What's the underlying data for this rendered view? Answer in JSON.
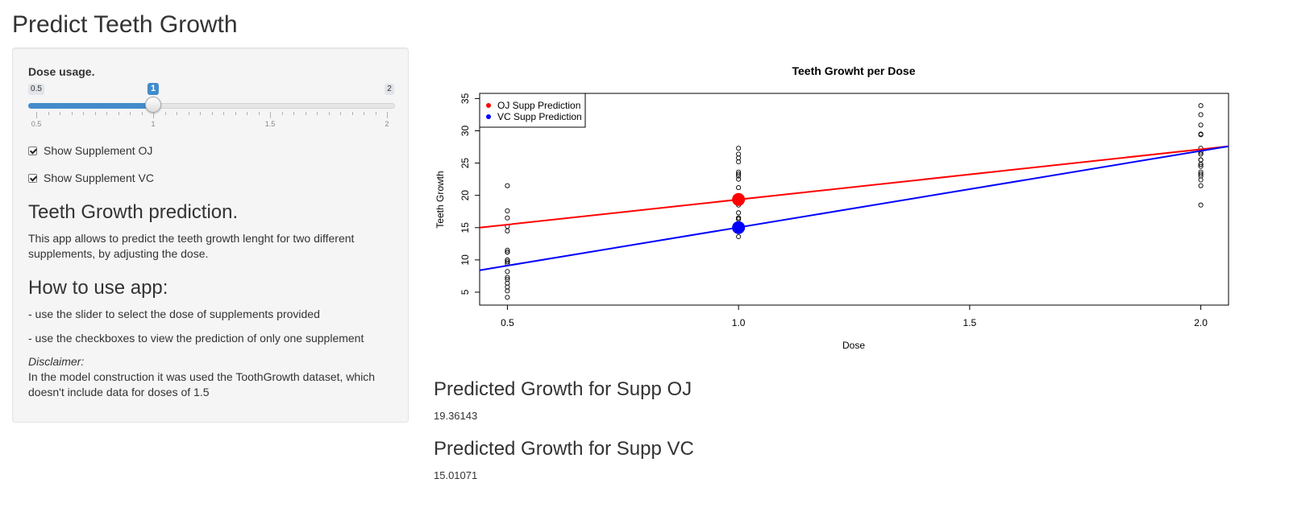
{
  "page": {
    "title": "Predict Teeth Growth"
  },
  "sidebar": {
    "slider": {
      "label": "Dose usage.",
      "min": 0.5,
      "max": 2,
      "value": 1,
      "min_label": "0.5",
      "max_label": "2",
      "value_label": "1",
      "tick_labels": [
        "0.5",
        "1",
        "1.5",
        "2"
      ]
    },
    "checkboxes": [
      {
        "label": "Show Supplement OJ",
        "checked": true
      },
      {
        "label": "Show Supplement VC",
        "checked": true
      }
    ],
    "heading1": "Teeth Growth prediction.",
    "description": "This app allows to predict the teeth growth lenght for two different supplements, by adjusting the dose.",
    "heading2": "How to use app:",
    "instructions": [
      "- use the slider to select the dose of supplements provided",
      "- use the checkboxes to view the prediction of only one supplement"
    ],
    "disclaimer_title": "Disclaimer:",
    "disclaimer_text": "In the model construction it was used the ToothGrowth dataset, which doesn't include data for doses of 1.5"
  },
  "main": {
    "oj_heading": "Predicted Growth for Supp OJ",
    "oj_value": "19.36143",
    "vc_heading": "Predicted Growth for Supp VC",
    "vc_value": "15.01071"
  },
  "chart_data": {
    "type": "scatter",
    "title": "Teeth Growht per Dose",
    "xlabel": "Dose",
    "ylabel": "Teeth Growth",
    "xlim": [
      0.44,
      2.06
    ],
    "ylim": [
      3,
      35.8
    ],
    "xticks": [
      0.5,
      1.0,
      1.5,
      2.0
    ],
    "xtick_labels": [
      "0.5",
      "1.0",
      "1.5",
      "2.0"
    ],
    "yticks": [
      5,
      10,
      15,
      20,
      25,
      30,
      35
    ],
    "ytick_labels": [
      "5",
      "10",
      "15",
      "20",
      "25",
      "30",
      "35"
    ],
    "grid": false,
    "legend_position": "top-left",
    "legend": [
      {
        "name": "OJ Supp Prediction",
        "color": "#ff0000"
      },
      {
        "name": "VC Supp Prediction",
        "color": "#0000ff"
      }
    ],
    "observations": {
      "x": [
        0.5,
        0.5,
        0.5,
        0.5,
        0.5,
        0.5,
        0.5,
        0.5,
        0.5,
        0.5,
        0.5,
        0.5,
        0.5,
        0.5,
        0.5,
        0.5,
        0.5,
        0.5,
        0.5,
        0.5,
        1.0,
        1.0,
        1.0,
        1.0,
        1.0,
        1.0,
        1.0,
        1.0,
        1.0,
        1.0,
        1.0,
        1.0,
        1.0,
        1.0,
        1.0,
        1.0,
        1.0,
        1.0,
        1.0,
        1.0,
        2.0,
        2.0,
        2.0,
        2.0,
        2.0,
        2.0,
        2.0,
        2.0,
        2.0,
        2.0,
        2.0,
        2.0,
        2.0,
        2.0,
        2.0,
        2.0,
        2.0,
        2.0,
        2.0,
        2.0
      ],
      "y": [
        4.2,
        5.2,
        5.8,
        6.4,
        7.0,
        7.3,
        8.2,
        9.4,
        9.7,
        10.0,
        11.2,
        11.5,
        14.5,
        15.2,
        16.5,
        17.6,
        21.5,
        10.0,
        9.7,
        11.2,
        13.6,
        14.5,
        15.0,
        15.5,
        16.3,
        16.5,
        17.3,
        18.5,
        19.7,
        21.2,
        22.5,
        23.0,
        23.6,
        25.2,
        25.8,
        26.4,
        27.3,
        23.3,
        16.5,
        15.2,
        18.5,
        21.5,
        22.4,
        23.0,
        23.3,
        23.6,
        24.5,
        24.8,
        25.5,
        26.4,
        26.7,
        27.3,
        29.4,
        29.5,
        30.9,
        32.5,
        33.9,
        25.5,
        26.4,
        24.8
      ]
    },
    "series": [
      {
        "name": "OJ Supp Prediction",
        "color": "#ff0000",
        "x": [
          0.44,
          2.06
        ],
        "y": [
          15.0,
          27.6
        ]
      },
      {
        "name": "VC Supp Prediction",
        "color": "#0000ff",
        "x": [
          0.44,
          2.06
        ],
        "y": [
          8.4,
          27.6
        ]
      }
    ],
    "predicted_points": [
      {
        "name": "OJ Supp Prediction",
        "x": 1.0,
        "y": 19.36143,
        "color": "#ff0000"
      },
      {
        "name": "VC Supp Prediction",
        "x": 1.0,
        "y": 15.01071,
        "color": "#0000ff"
      }
    ]
  }
}
